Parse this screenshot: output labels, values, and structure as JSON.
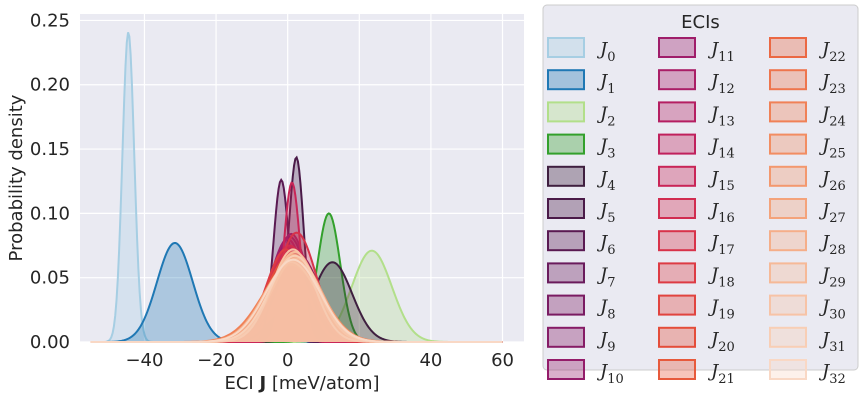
{
  "chart_data": {
    "type": "area",
    "xlabel_prefix": "ECI ",
    "xlabel_bold": "J",
    "xlabel_suffix": " [meV/atom]",
    "ylabel": "Probability density",
    "xlim": [
      -58,
      66
    ],
    "ylim": [
      0,
      0.255
    ],
    "xticks": [
      -40,
      -20,
      0,
      20,
      40,
      60
    ],
    "xtick_labels": [
      "−40",
      "−20",
      "0",
      "20",
      "40",
      "60"
    ],
    "yticks": [
      0,
      0.05,
      0.1,
      0.15,
      0.2,
      0.25
    ],
    "ytick_labels": [
      "0.00",
      "0.05",
      "0.10",
      "0.15",
      "0.20",
      "0.25"
    ],
    "grid": true,
    "legend": {
      "title": "ECIs",
      "placement": "outside-right",
      "columns": 3
    },
    "series": [
      {
        "name": "J",
        "sub": "0",
        "color": "#a6cee3",
        "components": [
          {
            "mu": -44.5,
            "sigma": 1.65,
            "amp": 0.241
          }
        ]
      },
      {
        "name": "J",
        "sub": "1",
        "color": "#1f78b4",
        "components": [
          {
            "mu": -31.5,
            "sigma": 5.0,
            "amp": 0.077
          }
        ]
      },
      {
        "name": "J",
        "sub": "2",
        "color": "#b2df8a",
        "components": [
          {
            "mu": 23.5,
            "sigma": 5.6,
            "amp": 0.071
          }
        ]
      },
      {
        "name": "J",
        "sub": "3",
        "color": "#33a02c",
        "components": [
          {
            "mu": 11.5,
            "sigma": 3.2,
            "amp": 0.1
          }
        ]
      },
      {
        "name": "J",
        "sub": "4",
        "color": "#3f1f3f",
        "components": [
          {
            "mu": 12.5,
            "sigma": 5.5,
            "amp": 0.062
          }
        ]
      },
      {
        "name": "J",
        "sub": "5",
        "color": "#4a1a48",
        "components": [
          {
            "mu": 2.5,
            "sigma": 2.0,
            "amp": 0.13
          },
          {
            "mu": -1.5,
            "sigma": 4.5,
            "amp": 0.02
          }
        ]
      },
      {
        "name": "J",
        "sub": "6",
        "color": "#5a1a52",
        "components": [
          {
            "mu": -1.8,
            "sigma": 2.2,
            "amp": 0.126
          }
        ]
      },
      {
        "name": "J",
        "sub": "7",
        "color": "#6a1b5c",
        "components": [
          {
            "mu": 2.0,
            "sigma": 5.5,
            "amp": 0.065
          }
        ]
      },
      {
        "name": "J",
        "sub": "8",
        "color": "#7a1b62",
        "components": [
          {
            "mu": 3.0,
            "sigma": 6.0,
            "amp": 0.068
          }
        ]
      },
      {
        "name": "J",
        "sub": "9",
        "color": "#861c66",
        "components": [
          {
            "mu": 0.5,
            "sigma": 5.2,
            "amp": 0.082
          }
        ]
      },
      {
        "name": "J",
        "sub": "10",
        "color": "#941c6a",
        "components": [
          {
            "mu": 1.0,
            "sigma": 4.8,
            "amp": 0.084
          }
        ]
      },
      {
        "name": "J",
        "sub": "11",
        "color": "#9f1d6a",
        "components": [
          {
            "mu": 0.0,
            "sigma": 5.0,
            "amp": 0.08
          }
        ]
      },
      {
        "name": "J",
        "sub": "12",
        "color": "#aa1e66",
        "components": [
          {
            "mu": 1.5,
            "sigma": 6.5,
            "amp": 0.07
          }
        ]
      },
      {
        "name": "J",
        "sub": "13",
        "color": "#b51f62",
        "components": [
          {
            "mu": 2.0,
            "sigma": 6.0,
            "amp": 0.072
          }
        ]
      },
      {
        "name": "J",
        "sub": "14",
        "color": "#c0215d",
        "components": [
          {
            "mu": 1.0,
            "sigma": 6.2,
            "amp": 0.074
          }
        ]
      },
      {
        "name": "J",
        "sub": "15",
        "color": "#c92557",
        "components": [
          {
            "mu": 1.2,
            "sigma": 2.3,
            "amp": 0.124
          }
        ]
      },
      {
        "name": "J",
        "sub": "16",
        "color": "#d12c50",
        "components": [
          {
            "mu": 0.5,
            "sigma": 6.0,
            "amp": 0.075
          }
        ]
      },
      {
        "name": "J",
        "sub": "17",
        "color": "#d8334a",
        "components": [
          {
            "mu": 2.5,
            "sigma": 5.5,
            "amp": 0.085
          }
        ]
      },
      {
        "name": "J",
        "sub": "18",
        "color": "#dd3b44",
        "components": [
          {
            "mu": -0.5,
            "sigma": 5.5,
            "amp": 0.072
          }
        ]
      },
      {
        "name": "J",
        "sub": "19",
        "color": "#e1443f",
        "components": [
          {
            "mu": 2.0,
            "sigma": 6.5,
            "amp": 0.07
          }
        ]
      },
      {
        "name": "J",
        "sub": "20",
        "color": "#e44d3a",
        "components": [
          {
            "mu": 1.0,
            "sigma": 7.0,
            "amp": 0.068
          }
        ]
      },
      {
        "name": "J",
        "sub": "21",
        "color": "#e75a3c",
        "components": [
          {
            "mu": 2.0,
            "sigma": 6.8,
            "amp": 0.066
          }
        ]
      },
      {
        "name": "J",
        "sub": "22",
        "color": "#eb6843",
        "components": [
          {
            "mu": 1.5,
            "sigma": 7.5,
            "amp": 0.064
          }
        ]
      },
      {
        "name": "J",
        "sub": "23",
        "color": "#ee754d",
        "components": [
          {
            "mu": 2.0,
            "sigma": 7.0,
            "amp": 0.066
          }
        ]
      },
      {
        "name": "J",
        "sub": "24",
        "color": "#f08157",
        "components": [
          {
            "mu": 1.0,
            "sigma": 8.0,
            "amp": 0.06
          }
        ]
      },
      {
        "name": "J",
        "sub": "25",
        "color": "#f28d62",
        "components": [
          {
            "mu": 2.0,
            "sigma": 7.5,
            "amp": 0.063
          }
        ]
      },
      {
        "name": "J",
        "sub": "26",
        "color": "#f3986e",
        "components": [
          {
            "mu": 1.5,
            "sigma": 6.5,
            "amp": 0.068
          }
        ]
      },
      {
        "name": "J",
        "sub": "27",
        "color": "#f4a37b",
        "components": [
          {
            "mu": 2.5,
            "sigma": 7.0,
            "amp": 0.065
          }
        ]
      },
      {
        "name": "J",
        "sub": "28",
        "color": "#f5ae89",
        "components": [
          {
            "mu": 1.0,
            "sigma": 7.5,
            "amp": 0.062
          }
        ]
      },
      {
        "name": "J",
        "sub": "29",
        "color": "#f6b997",
        "components": [
          {
            "mu": 2.0,
            "sigma": 6.5,
            "amp": 0.07
          }
        ]
      },
      {
        "name": "J",
        "sub": "30",
        "color": "#f7c3a6",
        "components": [
          {
            "mu": 1.5,
            "sigma": 6.0,
            "amp": 0.072
          }
        ]
      },
      {
        "name": "J",
        "sub": "31",
        "color": "#f8ceb5",
        "components": [
          {
            "mu": 2.0,
            "sigma": 7.0,
            "amp": 0.067
          }
        ]
      },
      {
        "name": "J",
        "sub": "32",
        "color": "#f9d8c5",
        "components": [
          {
            "mu": 1.5,
            "sigma": 7.5,
            "amp": 0.064
          }
        ]
      }
    ]
  }
}
